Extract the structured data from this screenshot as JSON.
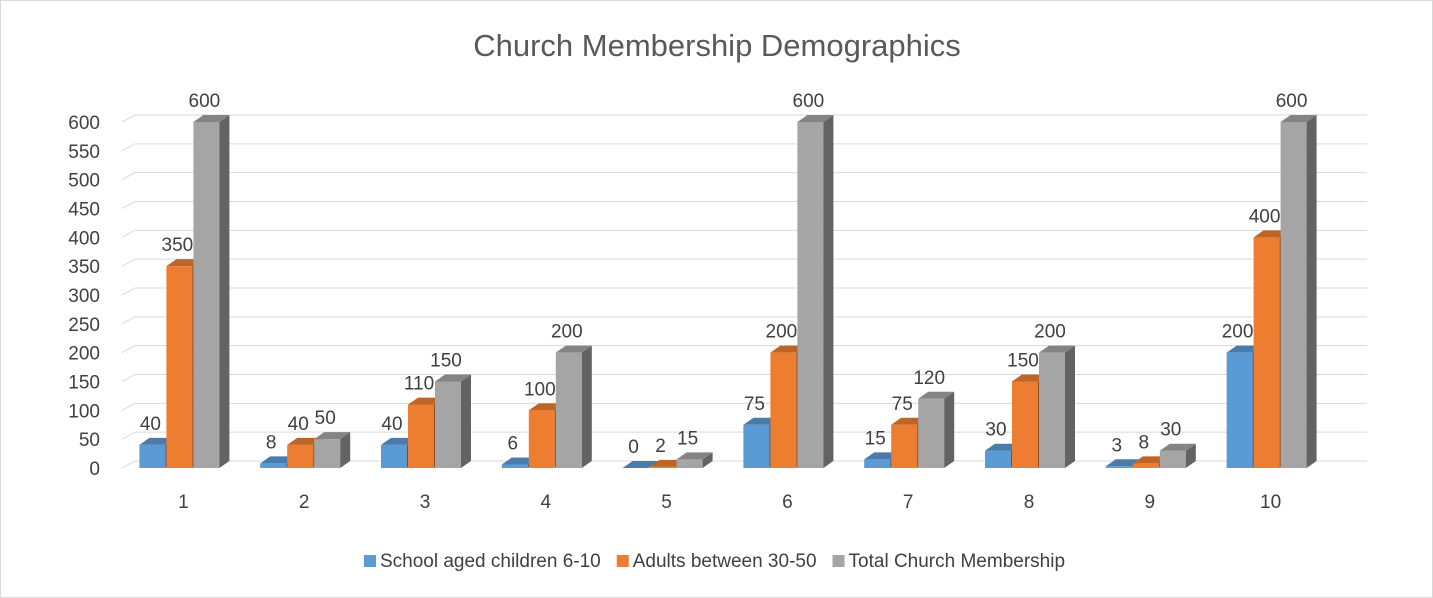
{
  "chart_data": {
    "type": "bar3d",
    "title": "Church Membership Demographics",
    "categories": [
      "1",
      "2",
      "3",
      "4",
      "5",
      "6",
      "7",
      "8",
      "9",
      "10"
    ],
    "series": [
      {
        "name": "School aged children 6-10",
        "color": "#5b9bd5",
        "values": [
          40,
          8,
          40,
          6,
          0,
          75,
          15,
          30,
          3,
          200
        ]
      },
      {
        "name": "Adults between 30-50",
        "color": "#ed7d31",
        "values": [
          350,
          40,
          110,
          100,
          2,
          200,
          75,
          150,
          8,
          400
        ]
      },
      {
        "name": "Total Church Membership",
        "color": "#a5a5a5",
        "values": [
          600,
          50,
          150,
          200,
          15,
          600,
          120,
          200,
          30,
          600
        ]
      }
    ],
    "ylim": [
      0,
      600
    ],
    "yticks": [
      0,
      50,
      100,
      150,
      200,
      250,
      300,
      350,
      400,
      450,
      500,
      550,
      600
    ],
    "grid": true,
    "legend": "bottom"
  }
}
